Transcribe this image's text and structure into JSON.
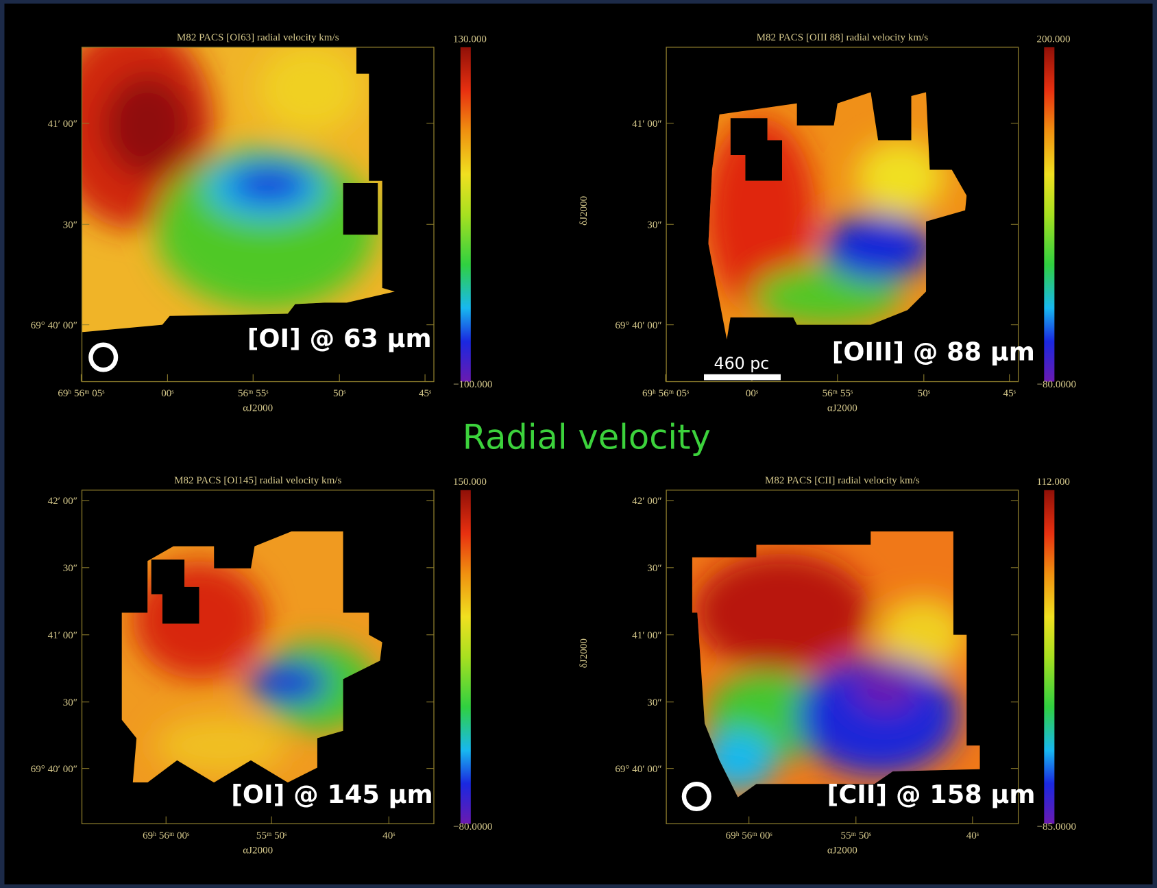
{
  "slide": {
    "title": "Radial velocity"
  },
  "panels": [
    {
      "title": "M82 PACS [OI63] radial velocity km/s",
      "cbar_max": "130.000",
      "cbar_min": "−100.000",
      "label": "[OI] @ 63 μm",
      "yticks": [
        "41′ 00″",
        "30″",
        "69° 40′ 00″"
      ],
      "xticks": [
        "69ʰ 56ᵐ 05ˢ",
        "00ˢ",
        "56ᵐ 55ˢ",
        "50ˢ",
        "45ˢ"
      ],
      "xlabel": "αJ2000"
    },
    {
      "title": "M82 PACS [OIII 88] radial velocity km/s",
      "cbar_max": "200.000",
      "cbar_min": "−80.0000",
      "label": "[OIII] @ 88 μm",
      "yticks": [
        "41′ 00″",
        "30″",
        "69° 40′ 00″"
      ],
      "xticks": [
        "69ʰ 56ᵐ 05ˢ",
        "00ˢ",
        "56ᵐ 55ˢ",
        "50ˢ",
        "45ˢ"
      ],
      "xlabel": "αJ2000",
      "ylabel": "δJ2000",
      "scale_bar": "460  pc"
    },
    {
      "title": "M82 PACS [OI145] radial velocity km/s",
      "cbar_max": "150.000",
      "cbar_min": "−80.0000",
      "label": "[OI] @  145 μm",
      "yticks": [
        "42′ 00″",
        "30″",
        "41′ 00″",
        "30″",
        "69° 40′ 00″"
      ],
      "xticks": [
        "69ʰ 56ᵐ 00ˢ",
        "55ᵐ 50ˢ",
        "40ˢ"
      ],
      "xlabel": "αJ2000"
    },
    {
      "title": "M82 PACS [CII] radial velocity km/s",
      "cbar_max": "112.000",
      "cbar_min": "−85.0000",
      "label": "[CII] @  158 μm",
      "yticks": [
        "42′ 00″",
        "30″",
        "41′ 00″",
        "30″",
        "69° 40′ 00″"
      ],
      "xticks": [
        "69ʰ 56ᵐ 00ˢ",
        "55ᵐ 50ˢ",
        "40ˢ"
      ],
      "xlabel": "αJ2000",
      "ylabel": "δJ2000"
    }
  ]
}
